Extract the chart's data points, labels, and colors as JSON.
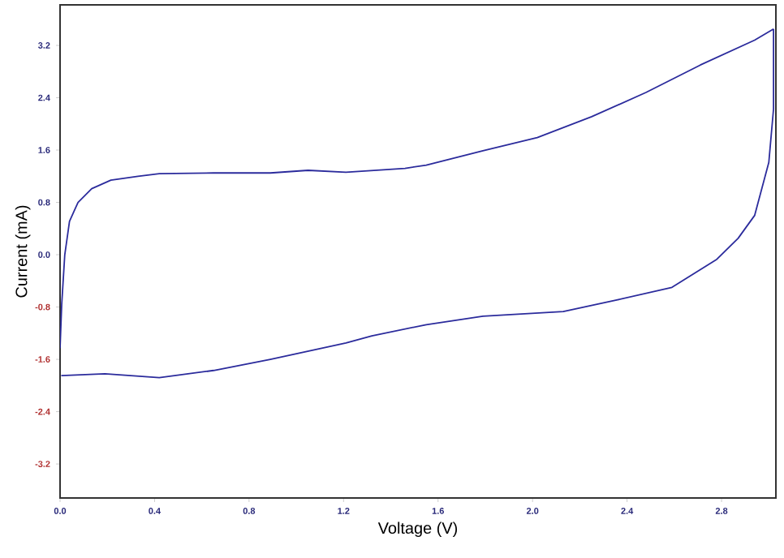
{
  "chart_data": {
    "type": "line",
    "xlabel": "Voltage (V)",
    "ylabel": "Current (mA)",
    "xlim": [
      0,
      3.03
    ],
    "ylim": [
      -3.72,
      3.82
    ],
    "xticks": [
      {
        "value": 0,
        "label": "0.0"
      },
      0.4,
      0.8,
      1.2,
      1.6,
      {
        "value": 2,
        "label": "2.0"
      },
      2.4,
      2.8
    ],
    "yticks": [
      -3.2,
      -2.4,
      -1.6,
      -0.8,
      {
        "value": 0,
        "label": "0.0"
      },
      0.8,
      1.6,
      2.4,
      3.2
    ],
    "marker": "none",
    "line_style": "solid",
    "series": [
      {
        "color": "#2b2b9c",
        "x": [
          0,
          0.007,
          0.02,
          0.04,
          0.076,
          0.134,
          0.215,
          0.33,
          0.42,
          0.65,
          0.89,
          1.05,
          1.21,
          1.46,
          1.55,
          1.79,
          2.02,
          2.25,
          2.48,
          2.71,
          2.94,
          3.02
        ],
        "values": [
          -1.43,
          -0.76,
          0,
          0.51,
          0.8,
          1.01,
          1.14,
          1.2,
          1.24,
          1.25,
          1.25,
          1.29,
          1.26,
          1.32,
          1.37,
          1.59,
          1.79,
          2.11,
          2.48,
          2.9,
          3.28,
          3.45
        ]
      },
      {
        "color": "#2b2b9c",
        "x": [
          3.02,
          3.02,
          3.0,
          2.94,
          2.87,
          2.78,
          2.59,
          2.36,
          2.13,
          1.79,
          1.55,
          1.32,
          1.21,
          0.89,
          0.65,
          0.42,
          0.19,
          0.005
        ],
        "values": [
          3.45,
          2.23,
          1.41,
          0.6,
          0.25,
          -0.07,
          -0.5,
          -0.69,
          -0.87,
          -0.94,
          -1.07,
          -1.24,
          -1.35,
          -1.6,
          -1.77,
          -1.88,
          -1.82,
          -1.85
        ]
      }
    ]
  }
}
